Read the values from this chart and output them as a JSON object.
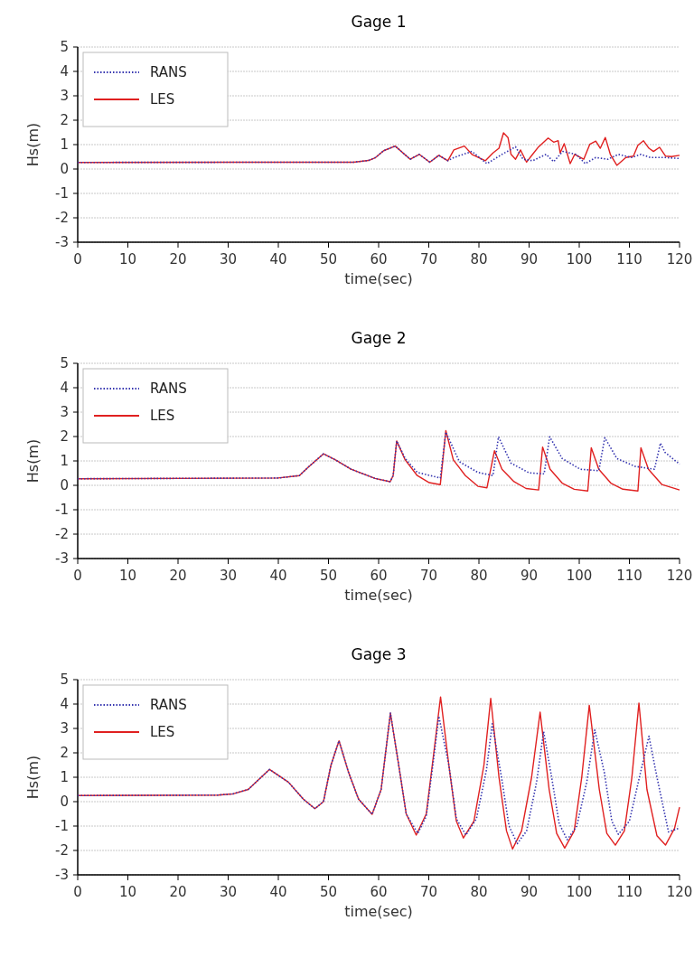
{
  "chart_data": [
    {
      "type": "line",
      "title": "Gage 1",
      "xlabel": "time(sec)",
      "ylabel": "Hs(m)",
      "xlim": [
        0,
        120
      ],
      "xticks": [
        0,
        10,
        20,
        30,
        40,
        50,
        60,
        70,
        80,
        90,
        100,
        110,
        120
      ],
      "ylim": [
        -3,
        5
      ],
      "yticks": [
        -3,
        -2,
        -1,
        0,
        1,
        2,
        3,
        4,
        5
      ],
      "grid": "y",
      "legend": "top left",
      "series": [
        {
          "name": "RANS",
          "color": "#3636b0",
          "line_style": "dotted",
          "x": [
            0,
            55,
            58,
            59.4,
            61,
            63.3,
            66.3,
            68.1,
            70.2,
            72,
            73.8,
            75,
            78.6,
            81.6,
            84.6,
            87.3,
            88.8,
            90.7,
            93.4,
            94.9,
            96.7,
            99.4,
            101.2,
            103.3,
            105.7,
            107.8,
            110.5,
            112.3,
            114.2,
            117.2,
            120
          ],
          "values": [
            0.27,
            0.28,
            0.35,
            0.47,
            0.75,
            0.94,
            0.4,
            0.6,
            0.28,
            0.56,
            0.34,
            0.47,
            0.72,
            0.22,
            0.6,
            0.91,
            0.4,
            0.34,
            0.6,
            0.3,
            0.72,
            0.6,
            0.22,
            0.47,
            0.4,
            0.6,
            0.47,
            0.6,
            0.47,
            0.47,
            0.43
          ]
        },
        {
          "name": "LES",
          "color": "#e02020",
          "line_style": "solid",
          "x": [
            0,
            55,
            58,
            59.4,
            61,
            63.3,
            66.3,
            68.1,
            70.2,
            72,
            73.8,
            75,
            77.1,
            78.6,
            81.3,
            82.8,
            84,
            84.9,
            85.8,
            86.4,
            87.3,
            88.3,
            89.5,
            90.7,
            91.9,
            93.8,
            94.9,
            95.8,
            96.2,
            97,
            98.2,
            99.1,
            100.9,
            102.1,
            103.3,
            104.2,
            105.2,
            106.2,
            107.5,
            109.3,
            110.8,
            111.7,
            112.8,
            113.9,
            114.8,
            116,
            117.2,
            118.4,
            120
          ],
          "values": [
            0.27,
            0.28,
            0.35,
            0.47,
            0.75,
            0.94,
            0.4,
            0.6,
            0.28,
            0.56,
            0.34,
            0.78,
            0.94,
            0.6,
            0.34,
            0.66,
            0.85,
            1.48,
            1.29,
            0.6,
            0.4,
            0.78,
            0.28,
            0.6,
            0.91,
            1.27,
            1.1,
            1.16,
            0.66,
            1.04,
            0.22,
            0.6,
            0.4,
            1.01,
            1.14,
            0.85,
            1.29,
            0.6,
            0.15,
            0.47,
            0.53,
            0.97,
            1.16,
            0.85,
            0.72,
            0.89,
            0.53,
            0.51,
            0.56
          ]
        }
      ]
    },
    {
      "type": "line",
      "title": "Gage 2",
      "xlabel": "time(sec)",
      "ylabel": "Hs(m)",
      "xlim": [
        0,
        120
      ],
      "xticks": [
        0,
        10,
        20,
        30,
        40,
        50,
        60,
        70,
        80,
        90,
        100,
        110,
        120
      ],
      "ylim": [
        -3,
        5
      ],
      "yticks": [
        -3,
        -2,
        -1,
        0,
        1,
        2,
        3,
        4,
        5
      ],
      "grid": "y",
      "legend": "top left",
      "series": [
        {
          "name": "RANS",
          "color": "#3636b0",
          "line_style": "dotted",
          "x": [
            0,
            40,
            44.2,
            46,
            49,
            51.4,
            54.5,
            59.3,
            62.3,
            62.9,
            63.6,
            65.3,
            67.7,
            72.3,
            73.4,
            76.1,
            79.8,
            82.8,
            83.9,
            86.4,
            90,
            93,
            94.1,
            96.6,
            100.2,
            103.9,
            105.1,
            107.5,
            111.1,
            115,
            116.2,
            117.1,
            120
          ],
          "values": [
            0.27,
            0.3,
            0.4,
            0.75,
            1.29,
            1.04,
            0.66,
            0.28,
            0.15,
            0.4,
            1.82,
            1.1,
            0.53,
            0.3,
            2.18,
            0.97,
            0.53,
            0.4,
            1.99,
            0.91,
            0.51,
            0.47,
            1.99,
            1.1,
            0.66,
            0.6,
            1.95,
            1.1,
            0.78,
            0.66,
            1.73,
            1.35,
            0.87
          ]
        },
        {
          "name": "LES",
          "color": "#e02020",
          "line_style": "solid",
          "x": [
            0,
            40,
            44.2,
            46,
            49,
            51.4,
            54.5,
            59.3,
            62.3,
            62.9,
            63.6,
            65.3,
            67.7,
            70.1,
            72.3,
            73.4,
            74.9,
            77.3,
            79.8,
            81.6,
            83.1,
            84.6,
            87,
            89.4,
            91.9,
            92.7,
            94.2,
            96.6,
            99,
            101.7,
            102.4,
            103.9,
            106.3,
            108.7,
            111.7,
            112.3,
            113.8,
            116.5,
            120
          ],
          "values": [
            0.27,
            0.3,
            0.4,
            0.75,
            1.29,
            1.04,
            0.66,
            0.28,
            0.15,
            0.4,
            1.82,
            1.04,
            0.4,
            0.11,
            0.03,
            2.24,
            1.04,
            0.4,
            -0.04,
            -0.1,
            1.42,
            0.66,
            0.15,
            -0.13,
            -0.19,
            1.57,
            0.66,
            0.09,
            -0.16,
            -0.23,
            1.54,
            0.66,
            0.09,
            -0.16,
            -0.23,
            1.54,
            0.66,
            0.03,
            -0.19
          ]
        }
      ]
    },
    {
      "type": "line",
      "title": "Gage 3",
      "xlabel": "time(sec)",
      "ylabel": "Hs(m)",
      "xlim": [
        0,
        120
      ],
      "xticks": [
        0,
        10,
        20,
        30,
        40,
        50,
        60,
        70,
        80,
        90,
        100,
        110,
        120
      ],
      "ylim": [
        -3,
        5
      ],
      "yticks": [
        -3,
        -2,
        -1,
        0,
        1,
        2,
        3,
        4,
        5
      ],
      "grid": "y",
      "legend": "top left",
      "series": [
        {
          "name": "RANS",
          "color": "#3636b0",
          "line_style": "dotted",
          "x": [
            0,
            28,
            31,
            34,
            38.25,
            42,
            45,
            47.3,
            49,
            50.5,
            52.1,
            54,
            56,
            58.7,
            60.5,
            62.35,
            64,
            65.5,
            67.8,
            69.5,
            71,
            72,
            74,
            75.5,
            77.4,
            79.5,
            81.5,
            82.65,
            84.5,
            86,
            87.65,
            89.5,
            91.5,
            92.9,
            94.5,
            96,
            97.6,
            99.5,
            101.5,
            103.1,
            105,
            106.5,
            107.8,
            110,
            112,
            113.9,
            115.5,
            117.8,
            120
          ],
          "values": [
            0.25,
            0.27,
            0.32,
            0.5,
            1.32,
            0.8,
            0.1,
            -0.29,
            0,
            1.5,
            2.49,
            1.2,
            0.1,
            -0.52,
            0.5,
            3.63,
            1.5,
            -0.5,
            -1.3,
            -0.6,
            1.8,
            3.5,
            1.5,
            -0.7,
            -1.37,
            -0.7,
            1.3,
            3.19,
            1,
            -1,
            -1.72,
            -1.2,
            0.8,
            2.87,
            1,
            -0.9,
            -1.56,
            -1,
            0.8,
            2.94,
            1.2,
            -0.8,
            -1.34,
            -0.8,
            1,
            2.68,
            1,
            -1.24,
            -1.08
          ]
        },
        {
          "name": "LES",
          "color": "#e02020",
          "line_style": "solid",
          "x": [
            0,
            28,
            31,
            34,
            38.25,
            42,
            45,
            47.3,
            49,
            50.5,
            52.1,
            54,
            56,
            58.7,
            60.5,
            62.35,
            64,
            65.5,
            67.5,
            69.5,
            71,
            72.35,
            74,
            75.5,
            76.9,
            79,
            81,
            82.35,
            84,
            85.5,
            86.7,
            88.5,
            90.5,
            92.2,
            94,
            95.5,
            97.1,
            99,
            100.5,
            102,
            104,
            105.5,
            107.2,
            109,
            110.5,
            111.9,
            113.5,
            115.5,
            117.2,
            119,
            120
          ],
          "values": [
            0.25,
            0.27,
            0.32,
            0.5,
            1.32,
            0.8,
            0.1,
            -0.29,
            0,
            1.5,
            2.49,
            1.2,
            0.1,
            -0.52,
            0.5,
            3.63,
            1.5,
            -0.5,
            -1.37,
            -0.5,
            2,
            4.29,
            1.5,
            -0.8,
            -1.49,
            -0.8,
            1.5,
            4.23,
            1,
            -1.2,
            -1.94,
            -1.2,
            1,
            3.67,
            0.5,
            -1.3,
            -1.9,
            -1.2,
            1,
            3.95,
            0.5,
            -1.3,
            -1.78,
            -1.2,
            1,
            4.04,
            0.5,
            -1.4,
            -1.78,
            -1.1,
            -0.23
          ]
        }
      ]
    }
  ]
}
